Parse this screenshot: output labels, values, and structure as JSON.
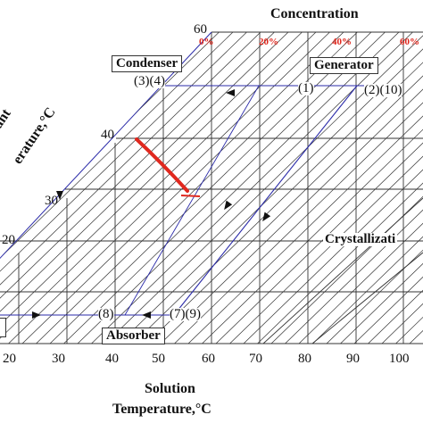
{
  "header": {
    "concentration_title": "Concentration"
  },
  "boxes": {
    "condenser": "Condenser",
    "generator": "Generator",
    "absorber": "Absorber"
  },
  "concentration_labels": [
    "0%",
    "20%",
    "40%",
    "60%"
  ],
  "point_labels": {
    "p3_4": "(3)(4)",
    "p1": "(1)",
    "p2_10": "(2)(10)",
    "p8": "(8)",
    "p7_9": "(7)(9)"
  },
  "refrigerant_ticks": [
    "60",
    "40",
    "30",
    "20"
  ],
  "refrigerant_axis": {
    "line1": "erant",
    "line2": "erature,°C"
  },
  "crystallization_label": "Crystallizati",
  "x_ticks": [
    "20",
    "30",
    "40",
    "50",
    "60",
    "70",
    "80",
    "90",
    "100"
  ],
  "x_axis": {
    "line1": "Solution",
    "line2": "Temperature,°C"
  },
  "colors": {
    "cycle": "#2a2aa8",
    "highlight": "#e0281e",
    "grid": "#333333"
  }
}
